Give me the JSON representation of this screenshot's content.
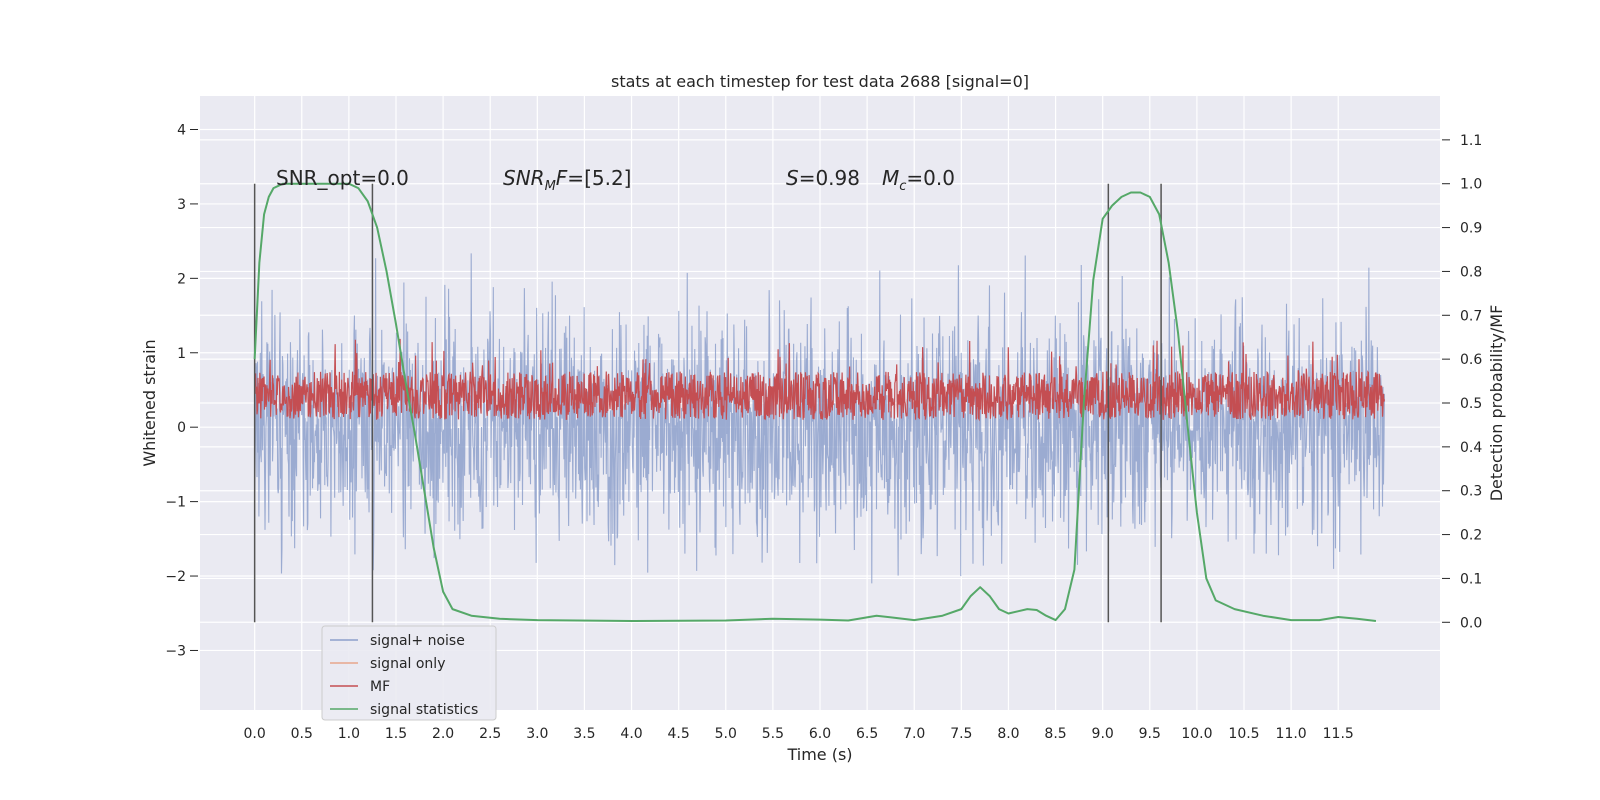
{
  "chart_data": {
    "type": "line",
    "title": "stats at each timestep for test data 2688 [signal=0]",
    "xlabel": "Time (s)",
    "ylabel": "Whitened strain",
    "ylabel_right": "Detection probability/MF",
    "xlim": [
      -0.58,
      12.58
    ],
    "ylim": [
      -3.8,
      4.45
    ],
    "ylim_right": [
      -0.2,
      1.2
    ],
    "x_ticks": [
      "0.0",
      "0.5",
      "1.0",
      "1.5",
      "2.0",
      "2.5",
      "3.0",
      "3.5",
      "4.0",
      "4.5",
      "5.0",
      "5.5",
      "6.0",
      "6.5",
      "7.0",
      "7.5",
      "8.0",
      "8.5",
      "9.0",
      "9.5",
      "10.0",
      "10.5",
      "11.0",
      "11.5"
    ],
    "y_ticks": [
      4,
      3,
      2,
      1,
      0,
      -1,
      -2,
      -3
    ],
    "y_tick_labels": [
      "4",
      "3",
      "2",
      "1",
      "0",
      "−1",
      "−2",
      "−3"
    ],
    "y_right_ticks": [
      1.1,
      1.0,
      0.9,
      0.8,
      0.7,
      0.6,
      0.5,
      0.4,
      0.3,
      0.2,
      0.1,
      0.0
    ],
    "y_right_tick_labels": [
      "1.1",
      "1.0",
      "0.9",
      "0.8",
      "0.7",
      "0.6",
      "0.5",
      "0.4",
      "0.3",
      "0.2",
      "0.1",
      "0.0"
    ],
    "grid": true,
    "legend_placement": "lower-left",
    "annotations": {
      "snr_opt": "SNR_opt=0.0",
      "snr_mf": "[5.2]",
      "s_value": "=0.98",
      "mc_value": "=0.0"
    },
    "window_markers": [
      0.0,
      1.25,
      9.06,
      9.62
    ],
    "series": [
      {
        "name": "signal+ noise",
        "color": "#8da0cb",
        "axis": "left",
        "kind": "noise",
        "spread": 1.0,
        "x_range": [
          0.0,
          11.99
        ]
      },
      {
        "name": "signal only",
        "color": "#e8a68b",
        "axis": "left",
        "kind": "flat",
        "values": []
      },
      {
        "name": "MF",
        "color": "#c44e52",
        "axis": "right",
        "kind": "noise",
        "baseline": 0.5,
        "spread": 0.05,
        "x_range": [
          0.0,
          11.99
        ]
      },
      {
        "name": "signal statistics",
        "color": "#55a868",
        "axis": "right",
        "kind": "curve",
        "x": [
          0.0,
          0.05,
          0.1,
          0.15,
          0.2,
          0.3,
          0.5,
          0.8,
          1.0,
          1.1,
          1.2,
          1.3,
          1.4,
          1.5,
          1.6,
          1.7,
          1.8,
          1.9,
          2.0,
          2.1,
          2.3,
          2.6,
          3.0,
          4.0,
          5.0,
          5.5,
          6.0,
          6.3,
          6.6,
          6.8,
          7.0,
          7.3,
          7.5,
          7.6,
          7.7,
          7.8,
          7.9,
          8.0,
          8.1,
          8.2,
          8.3,
          8.4,
          8.5,
          8.6,
          8.7,
          8.8,
          8.9,
          9.0,
          9.1,
          9.2,
          9.3,
          9.4,
          9.5,
          9.6,
          9.7,
          9.8,
          9.9,
          10.0,
          10.1,
          10.2,
          10.4,
          10.7,
          11.0,
          11.3,
          11.5,
          11.7,
          11.9
        ],
        "y": [
          0.6,
          0.82,
          0.93,
          0.97,
          0.99,
          1.0,
          1.0,
          1.0,
          1.0,
          0.99,
          0.96,
          0.9,
          0.8,
          0.68,
          0.55,
          0.43,
          0.3,
          0.17,
          0.07,
          0.03,
          0.015,
          0.008,
          0.005,
          0.003,
          0.004,
          0.008,
          0.006,
          0.004,
          0.015,
          0.01,
          0.005,
          0.015,
          0.03,
          0.06,
          0.08,
          0.06,
          0.03,
          0.02,
          0.025,
          0.03,
          0.028,
          0.015,
          0.005,
          0.03,
          0.12,
          0.5,
          0.78,
          0.92,
          0.95,
          0.97,
          0.98,
          0.98,
          0.97,
          0.93,
          0.82,
          0.66,
          0.45,
          0.25,
          0.1,
          0.05,
          0.03,
          0.015,
          0.005,
          0.005,
          0.012,
          0.008,
          0.003
        ]
      }
    ]
  }
}
